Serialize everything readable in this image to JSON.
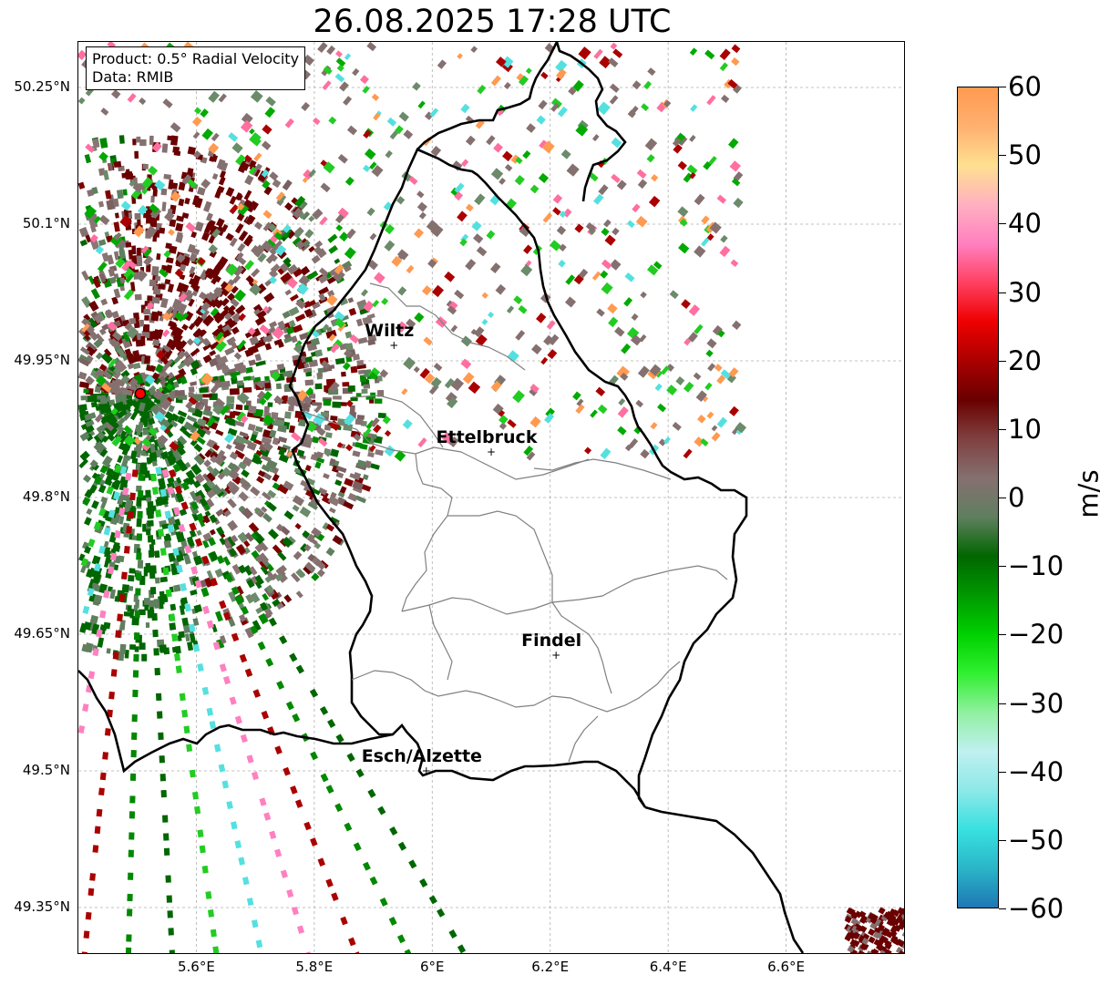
{
  "title": "26.08.2025 17:28 UTC",
  "info": {
    "product": "Product: 0.5° Radial Velocity",
    "data": "Data: RMIB"
  },
  "map": {
    "lat_labels": [
      "50.25°N",
      "50.1°N",
      "49.95°N",
      "49.8°N",
      "49.65°N",
      "49.5°N",
      "49.35°N"
    ],
    "lon_labels": [
      "5.6°E",
      "5.8°E",
      "6°E",
      "6.2°E",
      "6.4°E",
      "6.6°E"
    ],
    "cities": [
      {
        "name": "Wiltz",
        "lon": 5.935,
        "lat": 49.967
      },
      {
        "name": "Ettelbruck",
        "lon": 6.1,
        "lat": 49.85
      },
      {
        "name": "Findel",
        "lon": 6.21,
        "lat": 49.627
      },
      {
        "name": "Esch/Alzette",
        "lon": 5.99,
        "lat": 49.5
      }
    ],
    "radar_site": {
      "lon": 5.505,
      "lat": 49.914,
      "color": "#ff0000"
    }
  },
  "colorbar": {
    "label": "m/s",
    "min": -60,
    "max": 60,
    "tick_labels": [
      "60",
      "50",
      "40",
      "30",
      "20",
      "10",
      "0",
      "−10",
      "−20",
      "−30",
      "−40",
      "−50",
      "−60"
    ],
    "stops": [
      "#1f77b4",
      "#2ab5c8",
      "#38e0e0",
      "#8de8e8",
      "#c0f0f0",
      "#90f0a0",
      "#30f030",
      "#00d000",
      "#009900",
      "#006600",
      "#5f7f5f",
      "#857070",
      "#804040",
      "#6a0000",
      "#aa0000",
      "#ee0000",
      "#ff4060",
      "#ff80c0",
      "#ffb0c0",
      "#ffe090",
      "#ffb070",
      "#ff9a50"
    ],
    "label_color": "#000000"
  }
}
